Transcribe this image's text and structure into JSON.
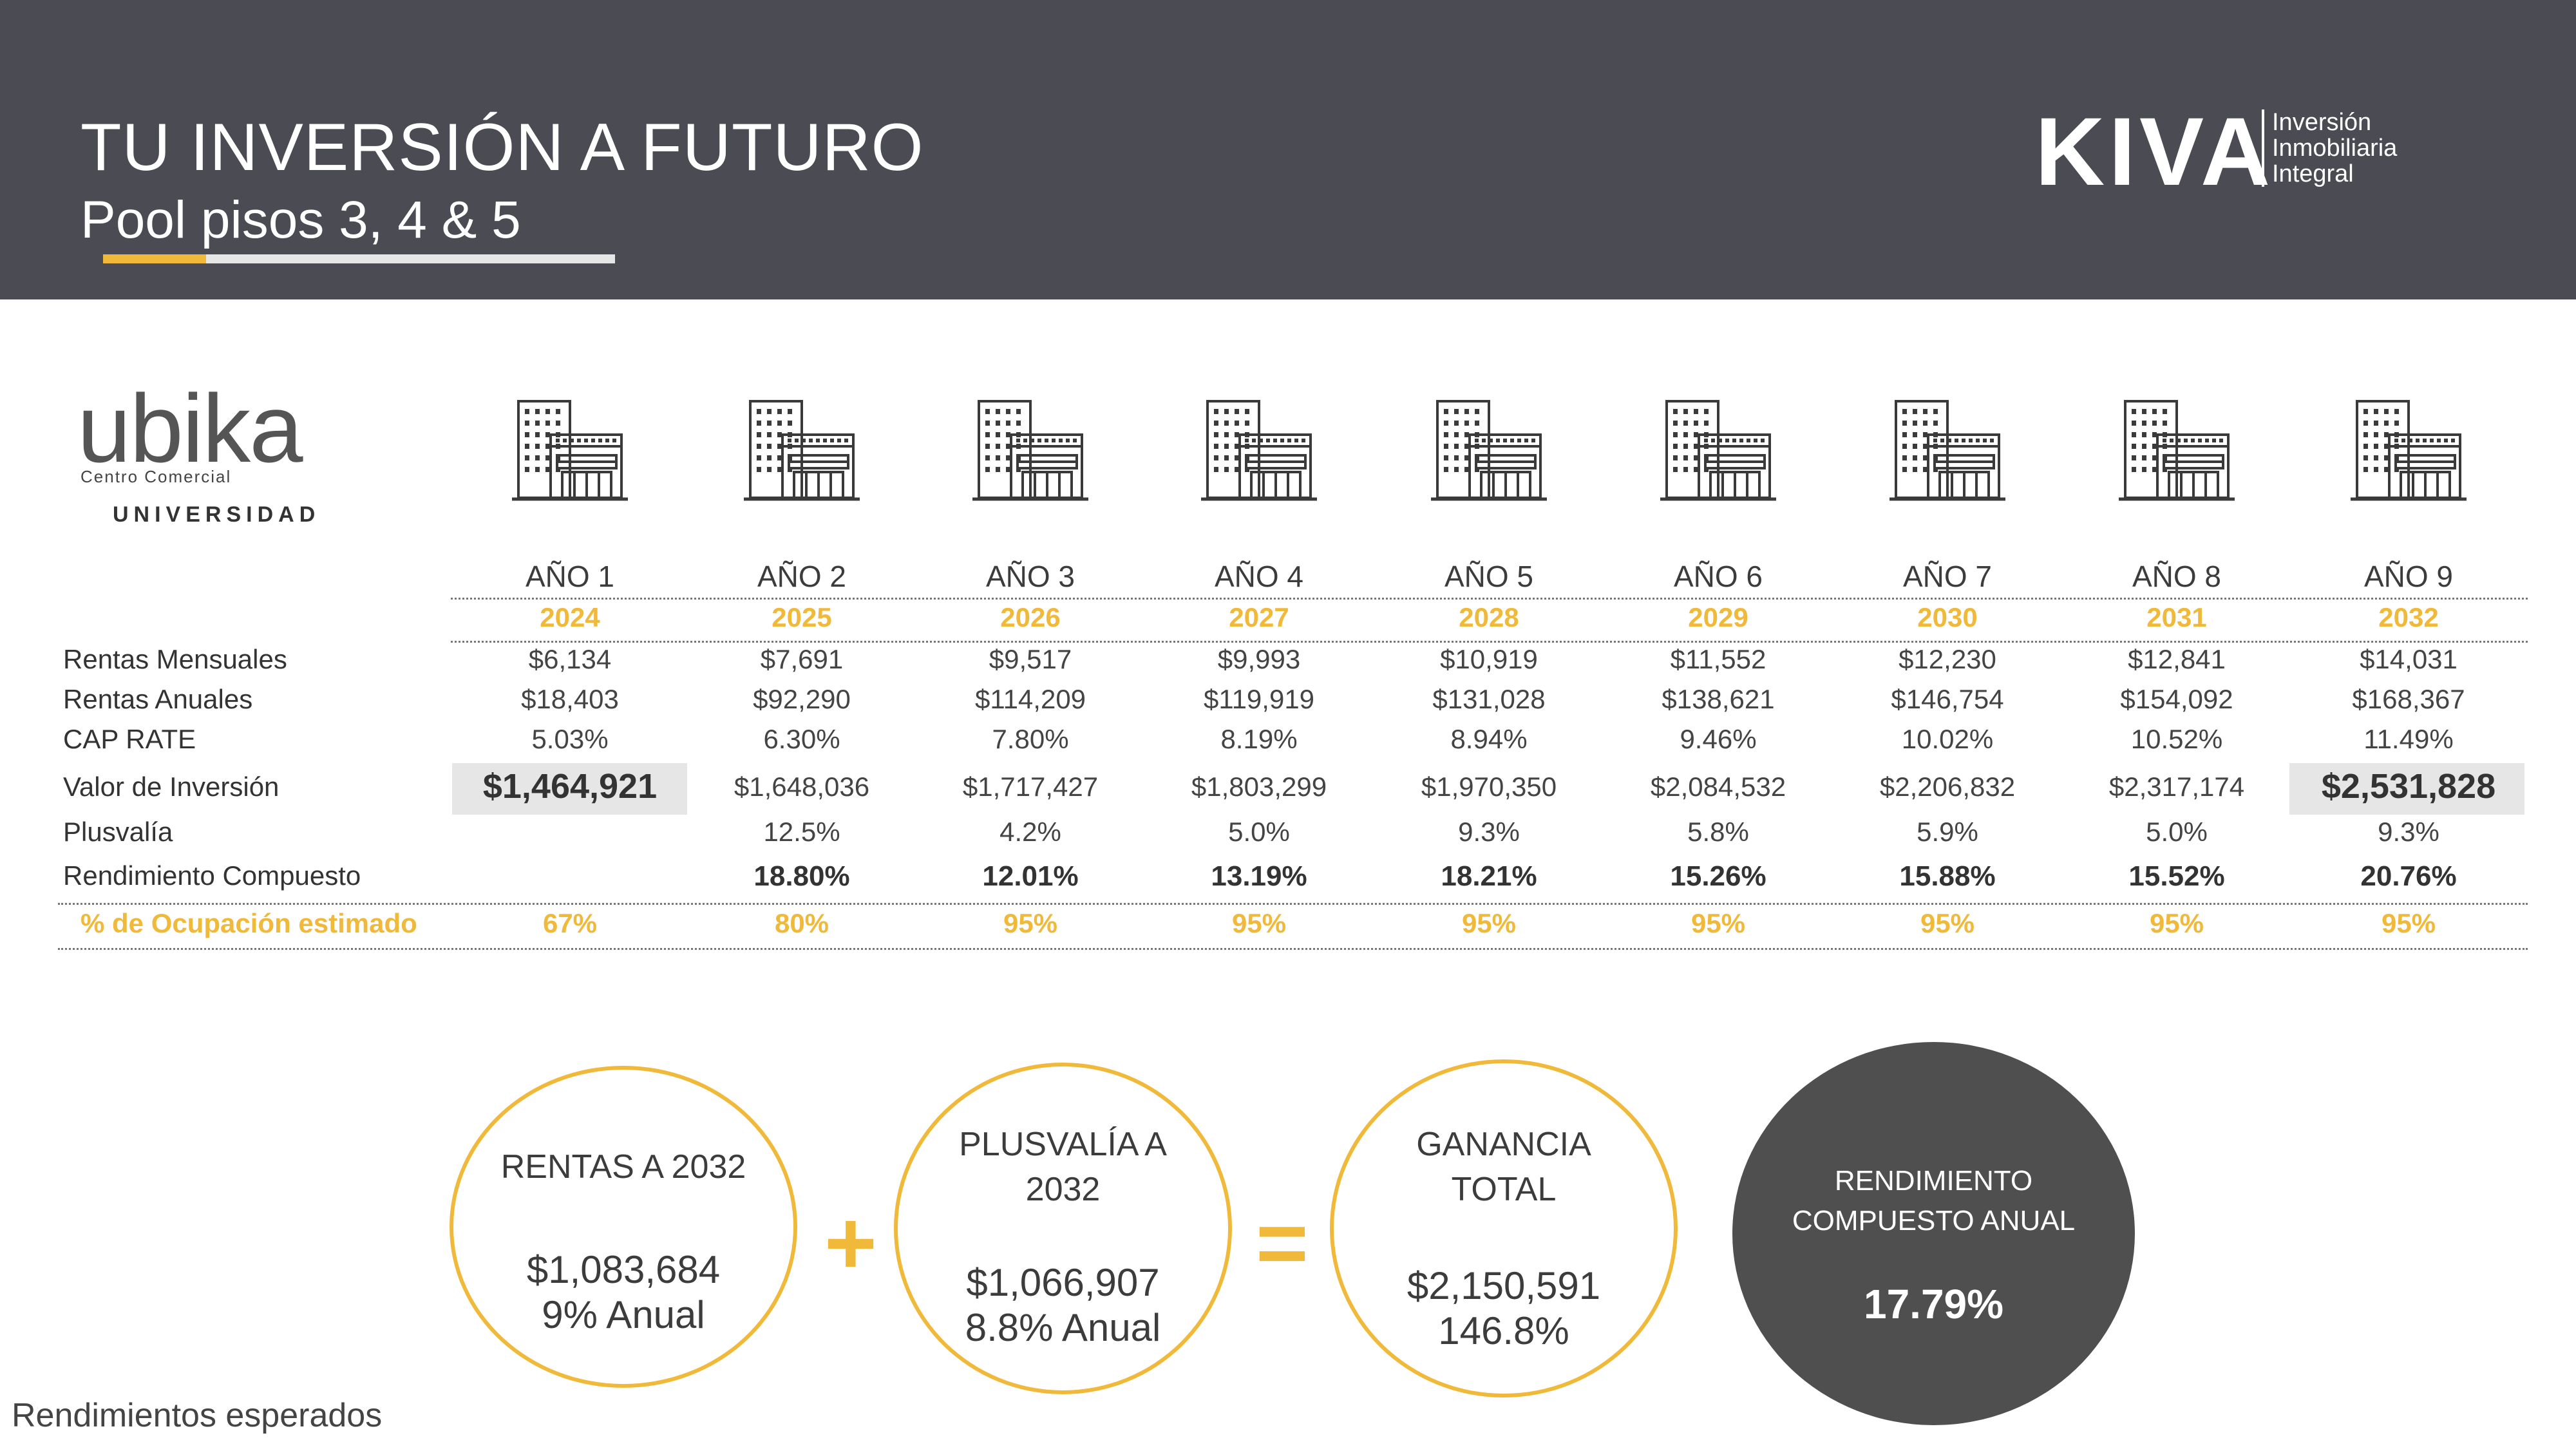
{
  "header": {
    "title": "TU INVERSIÓN A FUTURO",
    "subtitle": "Pool pisos 3, 4 & 5",
    "brand": "KIVA",
    "brand_tagline": [
      "Inversión",
      "Inmobiliaria",
      "Integral"
    ]
  },
  "ubika": {
    "name": "ubika",
    "sub": "Centro Comercial",
    "location": "UNIVERSIDAD"
  },
  "table": {
    "years": [
      "AÑO 1",
      "AÑO 2",
      "AÑO 3",
      "AÑO 4",
      "AÑO 5",
      "AÑO 6",
      "AÑO 7",
      "AÑO 8",
      "AÑO 9"
    ],
    "calendar": [
      "2024",
      "2025",
      "2026",
      "2027",
      "2028",
      "2029",
      "2030",
      "2031",
      "2032"
    ],
    "rows": [
      {
        "label": "Rentas Mensuales",
        "values": [
          "$6,134",
          "$7,691",
          "$9,517",
          "$9,993",
          "$10,919",
          "$11,552",
          "$12,230",
          "$12,841",
          "$14,031"
        ]
      },
      {
        "label": "Rentas Anuales",
        "values": [
          "$18,403",
          "$92,290",
          "$114,209",
          "$119,919",
          "$131,028",
          "$138,621",
          "$146,754",
          "$154,092",
          "$168,367"
        ]
      },
      {
        "label": "CAP RATE",
        "values": [
          "5.03%",
          "6.30%",
          "7.80%",
          "8.19%",
          "8.94%",
          "9.46%",
          "10.02%",
          "10.52%",
          "11.49%"
        ]
      },
      {
        "label": "Valor de Inversión",
        "values": [
          "$1,464,921",
          "$1,648,036",
          "$1,717,427",
          "$1,803,299",
          "$1,970,350",
          "$2,084,532",
          "$2,206,832",
          "$2,317,174",
          "$2,531,828"
        ]
      },
      {
        "label": "Plusvalía",
        "values": [
          "",
          "12.5%",
          "4.2%",
          "5.0%",
          "9.3%",
          "5.8%",
          "5.9%",
          "5.0%",
          "9.3%"
        ]
      },
      {
        "label": "Rendimiento Compuesto",
        "values": [
          "",
          "18.80%",
          "12.01%",
          "13.19%",
          "18.21%",
          "15.26%",
          "15.88%",
          "15.52%",
          "20.76%"
        ]
      },
      {
        "label": "% de Ocupación estimado",
        "values": [
          "67%",
          "80%",
          "95%",
          "95%",
          "95%",
          "95%",
          "95%",
          "95%",
          "95%"
        ]
      }
    ]
  },
  "summary": {
    "rentas": {
      "head": [
        "RENTAS A 2032"
      ],
      "amount": "$1,083,684",
      "rate": "9% Anual"
    },
    "plus_op": "+",
    "plusvalia": {
      "head": [
        "PLUSVALÍA A",
        "2032"
      ],
      "amount": "$1,066,907",
      "rate": "8.8% Anual"
    },
    "eq_op": "=",
    "ganancia": {
      "head": [
        "GANANCIA",
        "TOTAL"
      ],
      "amount": "$2,150,591",
      "rate": "146.8%"
    },
    "rendimiento": {
      "head": [
        "RENDIMIENTO",
        "COMPUESTO ANUAL"
      ],
      "value": "17.79%"
    }
  },
  "footer": "Rendimientos esperados",
  "colors": {
    "header_bg": "#4a4b53",
    "accent": "#f0b93a",
    "dark_circle": "#4f4f4f"
  }
}
